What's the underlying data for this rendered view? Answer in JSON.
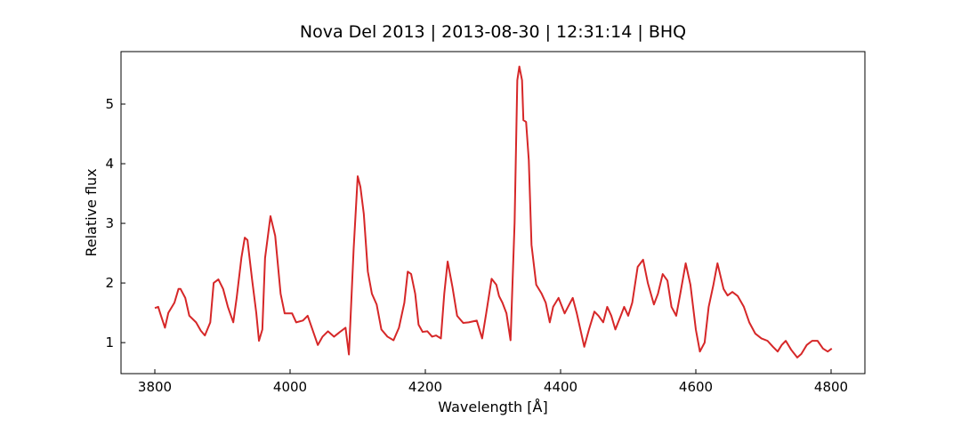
{
  "chart_data": {
    "type": "line",
    "title": "Nova Del 2013 | 2013-08-30 | 12:31:14 | BHQ",
    "xlabel": "Wavelength [Å]",
    "ylabel": "Relative flux",
    "xlim": [
      3750,
      4850
    ],
    "ylim": [
      0.48,
      5.88
    ],
    "xticks": [
      3800,
      4000,
      4200,
      4400,
      4600,
      4800
    ],
    "yticks": [
      1,
      2,
      3,
      4,
      5
    ],
    "grid": false,
    "series": [
      {
        "color": "#d62728",
        "x": [
          3800,
          3805,
          3808,
          3815,
          3820,
          3829,
          3835,
          3838,
          3845,
          3851,
          3861,
          3868,
          3874,
          3882,
          3887,
          3894,
          3901,
          3908,
          3916,
          3921,
          3928,
          3933,
          3937,
          3944,
          3950,
          3954,
          3959,
          3963,
          3971,
          3978,
          3986,
          3992,
          4003,
          4009,
          4019,
          4026,
          4034,
          4041,
          4048,
          4056,
          4065,
          4075,
          4082,
          4087,
          4094,
          4100,
          4104,
          4109,
          4115,
          4121,
          4128,
          4135,
          4144,
          4153,
          4161,
          4169,
          4174,
          4179,
          4185,
          4190,
          4196,
          4203,
          4210,
          4216,
          4223,
          4228,
          4233,
          4240,
          4247,
          4256,
          4264,
          4276,
          4284,
          4290,
          4298,
          4305,
          4309,
          4314,
          4320,
          4326,
          4332,
          4336,
          4339,
          4343,
          4345,
          4349,
          4353,
          4357,
          4364,
          4372,
          4378,
          4384,
          4389,
          4397,
          4406,
          4411,
          4418,
          4424,
          4435,
          4442,
          4450,
          4456,
          4463,
          4469,
          4475,
          4481,
          4489,
          4494,
          4500,
          4506,
          4514,
          4522,
          4529,
          4538,
          4544,
          4551,
          4558,
          4564,
          4571,
          4577,
          4585,
          4592,
          4600,
          4606,
          4613,
          4619,
          4626,
          4632,
          4641,
          4647,
          4654,
          4662,
          4671,
          4679,
          4688,
          4697,
          4706,
          4714,
          4721,
          4727,
          4733,
          4741,
          4750,
          4756,
          4764,
          4772,
          4780,
          4788,
          4795,
          4801
        ],
        "values": [
          1.58,
          1.6,
          1.49,
          1.25,
          1.5,
          1.67,
          1.9,
          1.9,
          1.75,
          1.45,
          1.34,
          1.2,
          1.12,
          1.34,
          2.0,
          2.06,
          1.9,
          1.6,
          1.34,
          1.75,
          2.42,
          2.76,
          2.72,
          2.04,
          1.5,
          1.03,
          1.22,
          2.42,
          3.12,
          2.79,
          1.82,
          1.49,
          1.49,
          1.34,
          1.37,
          1.45,
          1.19,
          0.96,
          1.1,
          1.19,
          1.1,
          1.19,
          1.25,
          0.8,
          2.57,
          3.79,
          3.61,
          3.16,
          2.19,
          1.82,
          1.64,
          1.22,
          1.1,
          1.04,
          1.25,
          1.67,
          2.19,
          2.15,
          1.82,
          1.3,
          1.18,
          1.19,
          1.1,
          1.12,
          1.07,
          1.82,
          2.36,
          1.94,
          1.45,
          1.33,
          1.34,
          1.37,
          1.07,
          1.49,
          2.07,
          1.97,
          1.78,
          1.67,
          1.49,
          1.04,
          3.01,
          5.4,
          5.63,
          5.4,
          4.73,
          4.7,
          4.06,
          2.64,
          1.97,
          1.82,
          1.67,
          1.34,
          1.6,
          1.75,
          1.49,
          1.6,
          1.75,
          1.49,
          0.93,
          1.22,
          1.52,
          1.45,
          1.34,
          1.6,
          1.45,
          1.22,
          1.45,
          1.6,
          1.45,
          1.67,
          2.27,
          2.39,
          2.0,
          1.64,
          1.82,
          2.15,
          2.04,
          1.6,
          1.45,
          1.82,
          2.33,
          1.97,
          1.22,
          0.85,
          1.0,
          1.6,
          1.97,
          2.33,
          1.9,
          1.79,
          1.85,
          1.78,
          1.6,
          1.34,
          1.15,
          1.07,
          1.03,
          0.93,
          0.85,
          0.96,
          1.03,
          0.88,
          0.75,
          0.81,
          0.96,
          1.03,
          1.03,
          0.9,
          0.85,
          0.9
        ]
      }
    ]
  }
}
